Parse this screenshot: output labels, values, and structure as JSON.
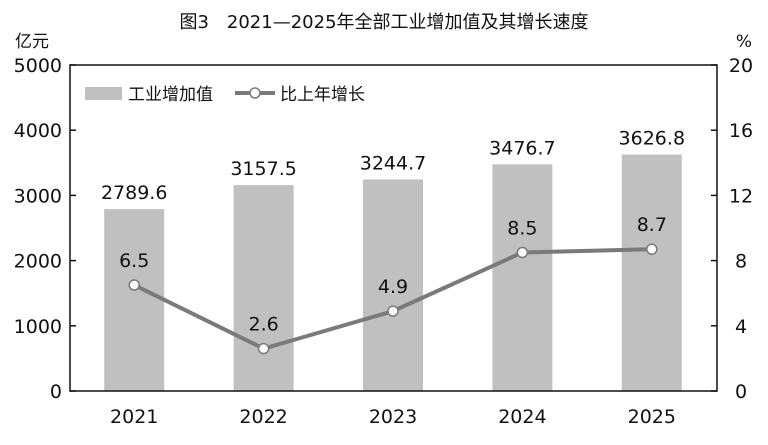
{
  "chart_data": {
    "type": "bar",
    "title": "图3　2021—2025年全部工业增加值及其增长速度",
    "ylabel": "亿元",
    "y2label": "%",
    "categories": [
      "2021",
      "2022",
      "2023",
      "2024",
      "2025"
    ],
    "ylim": [
      0,
      5000
    ],
    "y2lim": [
      0,
      20
    ],
    "yticks": [
      0,
      1000,
      2000,
      3000,
      4000,
      5000
    ],
    "y2ticks": [
      0,
      4,
      8,
      12,
      16,
      20
    ],
    "legend_position": "top-left",
    "grid": false,
    "series": [
      {
        "name": "工业增加值",
        "type": "bar",
        "axis": "left",
        "color": "#c0c0c0",
        "values": [
          2789.6,
          3157.5,
          3244.7,
          3476.7,
          3626.8
        ],
        "labels": [
          "2789.6",
          "3157.5",
          "3244.7",
          "3476.7",
          "3626.8"
        ]
      },
      {
        "name": "比上年增长",
        "type": "line",
        "axis": "right",
        "color": "#7a7a7a",
        "values": [
          6.5,
          2.6,
          4.9,
          8.5,
          8.7
        ],
        "labels": [
          "6.5",
          "2.6",
          "4.9",
          "8.5",
          "8.7"
        ]
      }
    ]
  }
}
